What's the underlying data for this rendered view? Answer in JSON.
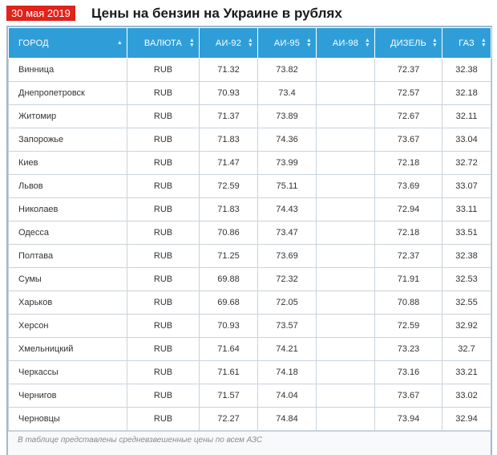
{
  "header": {
    "date": "30 мая 2019",
    "title": "Цены на бензин на Украине в рублях"
  },
  "colors": {
    "date_badge_bg": "#e0231b",
    "table_header_bg": "#2f9ed8",
    "table_border": "#9fb9cf"
  },
  "table": {
    "columns": [
      {
        "label": "ГОРОД",
        "sort_icon": "sort-asc-icon"
      },
      {
        "label": "ВАЛЮТА",
        "sort_icon": "sort-icon"
      },
      {
        "label": "АИ-92",
        "sort_icon": "sort-icon"
      },
      {
        "label": "АИ-95",
        "sort_icon": "sort-icon"
      },
      {
        "label": "АИ-98",
        "sort_icon": "sort-icon"
      },
      {
        "label": "ДИЗЕЛЬ",
        "sort_icon": "sort-icon"
      },
      {
        "label": "ГАЗ",
        "sort_icon": "sort-icon"
      }
    ],
    "rows": [
      [
        "Винница",
        "RUB",
        "71.32",
        "73.82",
        "",
        "72.37",
        "32.38"
      ],
      [
        "Днепропетровск",
        "RUB",
        "70.93",
        "73.4",
        "",
        "72.57",
        "32.18"
      ],
      [
        "Житомир",
        "RUB",
        "71.37",
        "73.89",
        "",
        "72.67",
        "32.11"
      ],
      [
        "Запорожье",
        "RUB",
        "71.83",
        "74.36",
        "",
        "73.67",
        "33.04"
      ],
      [
        "Киев",
        "RUB",
        "71.47",
        "73.99",
        "",
        "72.18",
        "32.72"
      ],
      [
        "Львов",
        "RUB",
        "72.59",
        "75.11",
        "",
        "73.69",
        "33.07"
      ],
      [
        "Николаев",
        "RUB",
        "71.83",
        "74.43",
        "",
        "72.94",
        "33.11"
      ],
      [
        "Одесса",
        "RUB",
        "70.86",
        "73.47",
        "",
        "72.18",
        "33.51"
      ],
      [
        "Полтава",
        "RUB",
        "71.25",
        "73.69",
        "",
        "72.37",
        "32.38"
      ],
      [
        "Сумы",
        "RUB",
        "69.88",
        "72.32",
        "",
        "71.91",
        "32.53"
      ],
      [
        "Харьков",
        "RUB",
        "69.68",
        "72.05",
        "",
        "70.88",
        "32.55"
      ],
      [
        "Херсон",
        "RUB",
        "70.93",
        "73.57",
        "",
        "72.59",
        "32.92"
      ],
      [
        "Хмельницкий",
        "RUB",
        "71.64",
        "74.21",
        "",
        "73.23",
        "32.7"
      ],
      [
        "Черкассы",
        "RUB",
        "71.61",
        "74.18",
        "",
        "73.16",
        "33.21"
      ],
      [
        "Чернигов",
        "RUB",
        "71.57",
        "74.04",
        "",
        "73.67",
        "33.02"
      ],
      [
        "Черновцы",
        "RUB",
        "72.27",
        "74.84",
        "",
        "73.94",
        "32.94"
      ]
    ],
    "footer_note": "В таблице представлены средневзвешенные цены по всем АЗС"
  }
}
